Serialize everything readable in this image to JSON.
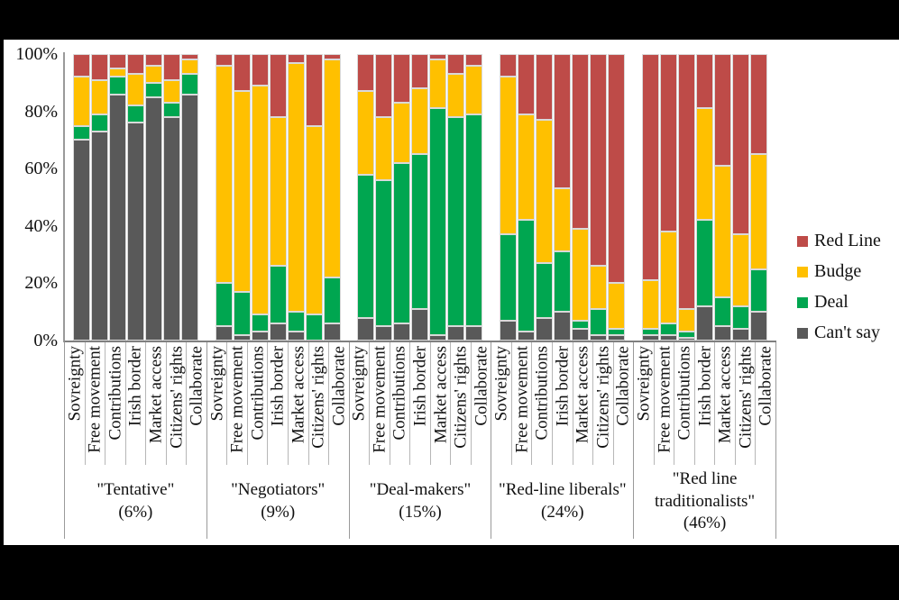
{
  "chart_data": {
    "type": "bar",
    "variant": "stacked-100-percent",
    "title": "",
    "ylabel": "",
    "xlabel": "",
    "ylim": [
      0,
      100
    ],
    "grid": false,
    "legend_position": "right",
    "y_ticks": [
      "100%",
      "80%",
      "60%",
      "40%",
      "20%",
      "0%"
    ],
    "categories": [
      "Sovreignty",
      "Free movement",
      "Contributions",
      "Irish border",
      "Market access",
      "Citizens' rights",
      "Collaborate"
    ],
    "series_order_bottom_to_top": [
      "Can't say",
      "Deal",
      "Budge",
      "Red Line"
    ],
    "segment_colors": [
      "#595959",
      "#00A650",
      "#FFC000",
      "#BE4B48"
    ],
    "legend": [
      {
        "label": "Red Line",
        "color": "#BE4B48"
      },
      {
        "label": "Budge",
        "color": "#FFC000"
      },
      {
        "label": "Deal",
        "color": "#00A650"
      },
      {
        "label": "Can't say",
        "color": "#595959"
      }
    ],
    "groups": [
      {
        "label": "\"Tentative\"",
        "share": "(6%)",
        "bars": [
          {
            "category": "Sovreignty",
            "values": [
              70,
              5,
              17,
              8
            ]
          },
          {
            "category": "Free movement",
            "values": [
              73,
              6,
              12,
              9
            ]
          },
          {
            "category": "Contributions",
            "values": [
              86,
              6,
              3,
              5
            ]
          },
          {
            "category": "Irish border",
            "values": [
              76,
              6,
              11,
              7
            ]
          },
          {
            "category": "Market access",
            "values": [
              85,
              5,
              6,
              4
            ]
          },
          {
            "category": "Citizens' rights",
            "values": [
              78,
              5,
              8,
              9
            ]
          },
          {
            "category": "Collaborate",
            "values": [
              86,
              7,
              5,
              2
            ]
          }
        ]
      },
      {
        "label": "\"Negotiators\"",
        "share": "(9%)",
        "bars": [
          {
            "category": "Sovreignty",
            "values": [
              5,
              15,
              76,
              4
            ]
          },
          {
            "category": "Free movement",
            "values": [
              2,
              15,
              70,
              13
            ]
          },
          {
            "category": "Contributions",
            "values": [
              3,
              6,
              80,
              11
            ]
          },
          {
            "category": "Irish border",
            "values": [
              6,
              20,
              52,
              22
            ]
          },
          {
            "category": "Market access",
            "values": [
              3,
              7,
              87,
              3
            ]
          },
          {
            "category": "Citizens' rights",
            "values": [
              0,
              9,
              66,
              25
            ]
          },
          {
            "category": "Collaborate",
            "values": [
              6,
              16,
              76,
              2
            ]
          }
        ]
      },
      {
        "label": "\"Deal-makers\"",
        "share": "(15%)",
        "bars": [
          {
            "category": "Sovreignty",
            "values": [
              8,
              50,
              29,
              13
            ]
          },
          {
            "category": "Free movement",
            "values": [
              5,
              51,
              22,
              22
            ]
          },
          {
            "category": "Contributions",
            "values": [
              6,
              56,
              21,
              17
            ]
          },
          {
            "category": "Irish border",
            "values": [
              11,
              54,
              23,
              12
            ]
          },
          {
            "category": "Market access",
            "values": [
              2,
              79,
              17,
              2
            ]
          },
          {
            "category": "Citizens' rights",
            "values": [
              5,
              73,
              15,
              7
            ]
          },
          {
            "category": "Collaborate",
            "values": [
              5,
              74,
              17,
              4
            ]
          }
        ]
      },
      {
        "label": "\"Red-line liberals\"",
        "share": "(24%)",
        "bars": [
          {
            "category": "Sovreignty",
            "values": [
              7,
              30,
              55,
              8
            ]
          },
          {
            "category": "Free movement",
            "values": [
              3,
              39,
              37,
              21
            ]
          },
          {
            "category": "Contributions",
            "values": [
              8,
              19,
              50,
              23
            ]
          },
          {
            "category": "Irish border",
            "values": [
              10,
              21,
              22,
              47
            ]
          },
          {
            "category": "Market access",
            "values": [
              4,
              3,
              32,
              61
            ]
          },
          {
            "category": "Citizens' rights",
            "values": [
              2,
              9,
              15,
              74
            ]
          },
          {
            "category": "Collaborate",
            "values": [
              2,
              2,
              16,
              80
            ]
          }
        ]
      },
      {
        "label": "\"Red line traditionalists\"",
        "share": "(46%)",
        "bars": [
          {
            "category": "Sovreignty",
            "values": [
              2,
              2,
              17,
              79
            ]
          },
          {
            "category": "Free movement",
            "values": [
              2,
              4,
              32,
              62
            ]
          },
          {
            "category": "Contributions",
            "values": [
              1,
              2,
              8,
              89
            ]
          },
          {
            "category": "Irish border",
            "values": [
              12,
              30,
              39,
              19
            ]
          },
          {
            "category": "Market access",
            "values": [
              5,
              10,
              46,
              39
            ]
          },
          {
            "category": "Citizens' rights",
            "values": [
              4,
              8,
              25,
              63
            ]
          },
          {
            "category": "Collaborate",
            "values": [
              10,
              15,
              40,
              35
            ]
          }
        ]
      }
    ]
  }
}
